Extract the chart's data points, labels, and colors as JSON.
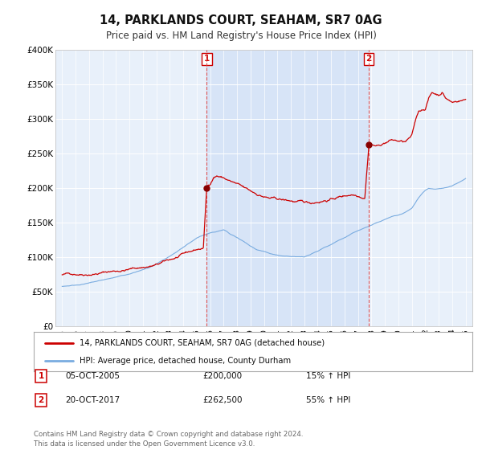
{
  "title": "14, PARKLANDS COURT, SEAHAM, SR7 0AG",
  "subtitle": "Price paid vs. HM Land Registry's House Price Index (HPI)",
  "legend_label_red": "14, PARKLANDS COURT, SEAHAM, SR7 0AG (detached house)",
  "legend_label_blue": "HPI: Average price, detached house, County Durham",
  "footer": "Contains HM Land Registry data © Crown copyright and database right 2024.\nThis data is licensed under the Open Government Licence v3.0.",
  "annotation1_label": "1",
  "annotation1_date": "05-OCT-2005",
  "annotation1_price": "£200,000",
  "annotation1_hpi": "15% ↑ HPI",
  "annotation2_label": "2",
  "annotation2_date": "20-OCT-2017",
  "annotation2_price": "£262,500",
  "annotation2_hpi": "55% ↑ HPI",
  "ylim": [
    0,
    400000
  ],
  "yticks": [
    0,
    50000,
    100000,
    150000,
    200000,
    250000,
    300000,
    350000,
    400000
  ],
  "ytick_labels": [
    "£0",
    "£50K",
    "£100K",
    "£150K",
    "£200K",
    "£250K",
    "£300K",
    "£350K",
    "£400K"
  ],
  "vline1_x": 2005.75,
  "vline2_x": 2017.8,
  "marker1_x": 2005.75,
  "marker1_y": 200000,
  "marker2_x": 2017.8,
  "marker2_y": 262500,
  "red_color": "#cc0000",
  "blue_color": "#7aace0",
  "shade_color": "#ddeeff",
  "bg_color": "#ffffff",
  "plot_bg": "#e8f0fa",
  "grid_color": "#ffffff",
  "xlim_left": 1994.5,
  "xlim_right": 2025.5
}
